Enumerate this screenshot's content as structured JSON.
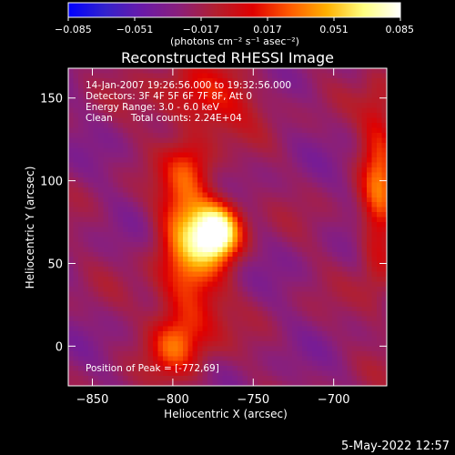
{
  "colorbar": {
    "ticks": [
      "−0.085",
      "−0.051",
      "−0.017",
      "0.017",
      "0.051",
      "0.085"
    ],
    "unit_label": "(photons cm⁻² s⁻¹ asec⁻²)",
    "colors": [
      "#0000ff",
      "#3322cc",
      "#6a1aa8",
      "#8a1f7a",
      "#b21f2f",
      "#e00000",
      "#ff5a00",
      "#ffb000",
      "#ffff80",
      "#ffffff"
    ]
  },
  "plot": {
    "title": "Reconstructed RHESSI Image",
    "info": [
      "14-Jan-2007 19:26:56.000 to 19:32:56.000",
      "Detectors: 3F 4F 5F 6F 7F 8F, Att 0",
      "Energy Range: 3.0 - 6.0 keV",
      "Clean      Total counts: 2.24E+04"
    ],
    "peak_label": "Position of Peak = [-772,69]"
  },
  "footer": {
    "timestamp": "5-May-2022 12:57"
  },
  "chart_data": {
    "type": "heatmap",
    "title": "Reconstructed RHESSI Image",
    "xlabel": "Heliocentric X (arcsec)",
    "ylabel": "Heliocentric Y (arcsec)",
    "xlim": [
      -865,
      -667
    ],
    "ylim": [
      -24,
      168
    ],
    "xticks": [
      -850,
      -800,
      -750,
      -700
    ],
    "yticks": [
      0,
      50,
      100,
      150
    ],
    "xtick_labels": [
      "−850",
      "−800",
      "−750",
      "−700"
    ],
    "ytick_labels": [
      "0",
      "50",
      "100",
      "150"
    ],
    "colorbar_range": [
      -0.085,
      0.085
    ],
    "peak": {
      "x": -772,
      "y": 69
    },
    "sources": [
      {
        "x": -772,
        "y": 69,
        "sx": 10,
        "sy": 12,
        "amp": 0.11
      },
      {
        "x": -792,
        "y": 78,
        "sx": 12,
        "sy": 22,
        "amp": 0.05
      },
      {
        "x": -790,
        "y": 30,
        "sx": 14,
        "sy": 28,
        "amp": 0.045
      },
      {
        "x": -780,
        "y": 150,
        "sx": 22,
        "sy": 14,
        "amp": 0.04
      },
      {
        "x": -800,
        "y": 0,
        "sx": 10,
        "sy": 12,
        "amp": 0.035
      },
      {
        "x": -672,
        "y": 95,
        "sx": 8,
        "sy": 40,
        "amp": 0.05
      },
      {
        "x": -790,
        "y": 110,
        "sx": 10,
        "sy": 12,
        "amp": 0.025
      }
    ],
    "background": -0.025
  }
}
